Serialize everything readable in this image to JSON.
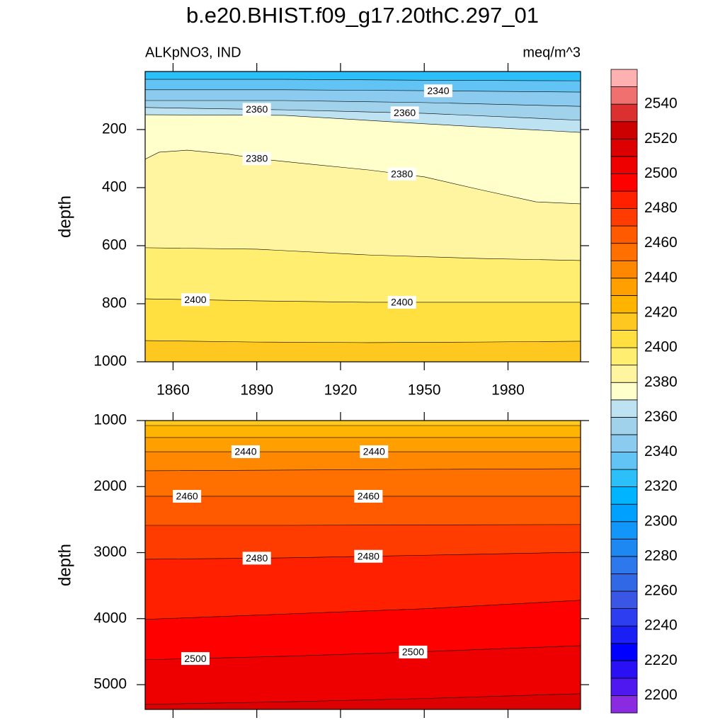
{
  "title": "b.e20.BHIST.f09_g17.20thC.297_01",
  "left_string": "ALKpNO3, IND",
  "right_string": "meq/m^3",
  "chart_data": [
    {
      "type": "contour",
      "ylabel": "depth",
      "xlim": [
        1850,
        2006
      ],
      "xticks": [
        1860,
        1890,
        1920,
        1950,
        1980
      ],
      "xtick_labels": true,
      "ylim": [
        0,
        1000
      ],
      "yticks": [
        200,
        400,
        600,
        800,
        1000
      ],
      "y_reversed": true,
      "lines": [
        {
          "level": 2330,
          "x": [
            1850,
            1900,
            1950,
            2006
          ],
          "y": [
            27,
            27,
            30,
            32
          ]
        },
        {
          "level": 2340,
          "x": [
            1850,
            1900,
            1950,
            2006
          ],
          "y": [
            63,
            63,
            66,
            71
          ]
        },
        {
          "level": 2350,
          "x": [
            1850,
            1900,
            1950,
            2006
          ],
          "y": [
            100,
            100,
            107,
            120
          ]
        },
        {
          "level": 2360,
          "x": [
            1850,
            1900,
            1950,
            2006
          ],
          "y": [
            124,
            132,
            144,
            168
          ]
        },
        {
          "level": 2370,
          "x": [
            1850,
            1900,
            1950,
            2006
          ],
          "y": [
            149,
            151,
            180,
            210
          ]
        },
        {
          "level": 2380,
          "x": [
            1850,
            1855,
            1865,
            1880,
            1890,
            1910,
            1930,
            1950,
            1970,
            1990,
            2006
          ],
          "y": [
            302,
            278,
            271,
            285,
            300,
            320,
            339,
            363,
            407,
            449,
            456
          ]
        },
        {
          "level": 2390,
          "x": [
            1850,
            1890,
            1930,
            1970,
            2006
          ],
          "y": [
            607,
            612,
            632,
            644,
            651
          ]
        },
        {
          "level": 2400,
          "x": [
            1850,
            1890,
            1930,
            1970,
            2006
          ],
          "y": [
            783,
            790,
            795,
            795,
            795
          ]
        },
        {
          "level": 2410,
          "x": [
            1850,
            1890,
            1930,
            1970,
            2006
          ],
          "y": [
            927,
            932,
            934,
            932,
            929
          ]
        }
      ]
    },
    {
      "type": "contour",
      "ylabel": "depth",
      "xlim": [
        1850,
        2006
      ],
      "xticks": [
        1860,
        1890,
        1920,
        1950,
        1980
      ],
      "xtick_labels": false,
      "ylim": [
        1000,
        5375
      ],
      "yticks": [
        1000,
        2000,
        3000,
        4000,
        5000
      ],
      "y_reversed": true,
      "lines": [
        {
          "level": 2420,
          "x": [
            1850,
            1900,
            1950,
            2006
          ],
          "y": [
            1075,
            1075,
            1075,
            1075
          ]
        },
        {
          "level": 2430,
          "x": [
            1850,
            1900,
            1950,
            2006
          ],
          "y": [
            1257,
            1257,
            1257,
            1257
          ]
        },
        {
          "level": 2440,
          "x": [
            1850,
            1900,
            1950,
            2006
          ],
          "y": [
            1472,
            1472,
            1472,
            1472
          ]
        },
        {
          "level": 2450,
          "x": [
            1850,
            1900,
            1950,
            2006
          ],
          "y": [
            1761,
            1750,
            1740,
            1730
          ]
        },
        {
          "level": 2460,
          "x": [
            1850,
            1900,
            1950,
            2006
          ],
          "y": [
            2147,
            2147,
            2147,
            2147
          ]
        },
        {
          "level": 2470,
          "x": [
            1850,
            1900,
            1950,
            2006
          ],
          "y": [
            2587,
            2587,
            2580,
            2575
          ]
        },
        {
          "level": 2480,
          "x": [
            1850,
            1900,
            1950,
            2006
          ],
          "y": [
            3101,
            3080,
            3040,
            2994
          ]
        },
        {
          "level": 2490,
          "x": [
            1850,
            1900,
            1950,
            2006
          ],
          "y": [
            4011,
            3930,
            3850,
            3722
          ]
        },
        {
          "level": 2500,
          "x": [
            1850,
            1900,
            1950,
            2006
          ],
          "y": [
            4623,
            4570,
            4500,
            4409
          ]
        },
        {
          "level": 2510,
          "x": [
            1850,
            1900,
            1950,
            2006
          ],
          "y": [
            5298,
            5260,
            5210,
            5137
          ]
        }
      ]
    }
  ],
  "colorbar": {
    "levels": [
      2200,
      2210,
      2220,
      2230,
      2240,
      2250,
      2260,
      2270,
      2280,
      2290,
      2300,
      2310,
      2320,
      2330,
      2340,
      2350,
      2360,
      2370,
      2380,
      2390,
      2400,
      2410,
      2420,
      2430,
      2440,
      2450,
      2460,
      2470,
      2480,
      2490,
      2500,
      2510,
      2520,
      2530,
      2540,
      2550
    ],
    "colors": [
      "#8a2be2",
      "#5018f0",
      "#2a10f5",
      "#0000ff",
      "#1a20f5",
      "#2c3ef0",
      "#3a56e4",
      "#3068e6",
      "#2c78ec",
      "#1e88f2",
      "#1296fa",
      "#00a0ff",
      "#00b4ff",
      "#2cc0fa",
      "#62c4f5",
      "#8ccbf0",
      "#a0d2ec",
      "#bde3f3",
      "#ffffcc",
      "#fff4a0",
      "#ffee70",
      "#ffe040",
      "#ffc820",
      "#ffb400",
      "#ffa000",
      "#ff8800",
      "#ff7000",
      "#ff5a00",
      "#ff3c00",
      "#ff2000",
      "#ff0000",
      "#ee0000",
      "#dd0000",
      "#cc0000",
      "#dc3030",
      "#f07070",
      "#ffb0b0"
    ],
    "ticks": [
      2200,
      2220,
      2240,
      2260,
      2280,
      2300,
      2320,
      2340,
      2360,
      2380,
      2400,
      2420,
      2440,
      2460,
      2480,
      2500,
      2520,
      2540
    ]
  }
}
